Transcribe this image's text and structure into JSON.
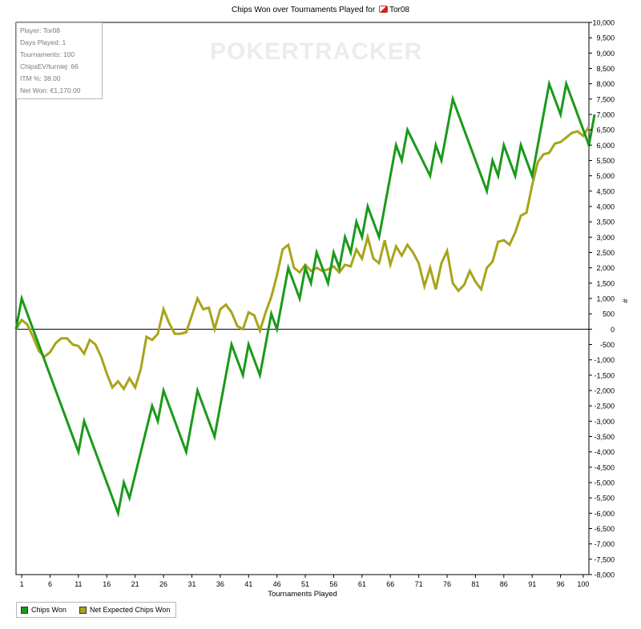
{
  "title": {
    "prefix": "Chips Won over Tournaments Played for",
    "player": "Tor08"
  },
  "logo": {
    "text": "POKERTRACKER"
  },
  "stats": [
    "Player: Tor08",
    "Days Played: 1",
    "Tournaments: 100",
    "ChipsEV/turniej: 66",
    "ITM %: 38.00",
    "Net Won: €1,170.00"
  ],
  "legend": {
    "chips_won": "Chips Won",
    "net_expected": "Net Expected Chips Won"
  },
  "colors": {
    "chips_won": "#1a9a1a",
    "net_expected": "#a8a41a"
  },
  "chart_data": {
    "type": "line",
    "title": "Chips Won over Tournaments Played for Tor08",
    "xlabel": "Tournaments Played",
    "ylabel": "#",
    "xlim": [
      0,
      101
    ],
    "ylim": [
      -8000,
      10000
    ],
    "x_ticks": [
      1,
      6,
      11,
      16,
      21,
      26,
      31,
      36,
      41,
      46,
      51,
      56,
      61,
      66,
      71,
      76,
      81,
      86,
      91,
      96,
      100
    ],
    "y_ticks": [
      -8000,
      -7500,
      -7000,
      -6500,
      -6000,
      -5500,
      -5000,
      -4500,
      -4000,
      -3500,
      -3000,
      -2500,
      -2000,
      -1500,
      -1000,
      -500,
      0,
      500,
      1000,
      1500,
      2000,
      2500,
      3000,
      3500,
      4000,
      4500,
      5000,
      5500,
      6000,
      6500,
      7000,
      7500,
      8000,
      8500,
      9000,
      9500,
      10000
    ],
    "y_tick_labels": [
      "-8,000",
      "-7,500",
      "-7,000",
      "-6,500",
      "-6,000",
      "-5,500",
      "-5,000",
      "-4,500",
      "-4,000",
      "-3,500",
      "-3,000",
      "-2,500",
      "-2,000",
      "-1,500",
      "-1,000",
      "-500",
      "0",
      "500",
      "1,000",
      "1,500",
      "2,000",
      "2,500",
      "3,000",
      "3,500",
      "4,000",
      "4,500",
      "5,000",
      "5,500",
      "6,000",
      "6,500",
      "7,000",
      "7,500",
      "8,000",
      "8,500",
      "9,000",
      "9,500",
      "10,000"
    ],
    "series": [
      {
        "name": "Chips Won",
        "points": [
          [
            0,
            0
          ],
          [
            1,
            1000
          ],
          [
            11,
            -4000
          ],
          [
            12,
            -3000
          ],
          [
            18,
            -6000
          ],
          [
            19,
            -5000
          ],
          [
            20,
            -5500
          ],
          [
            24,
            -2500
          ],
          [
            25,
            -3000
          ],
          [
            26,
            -2000
          ],
          [
            30,
            -4000
          ],
          [
            32,
            -2000
          ],
          [
            35,
            -3500
          ],
          [
            38,
            -500
          ],
          [
            40,
            -1500
          ],
          [
            41,
            -500
          ],
          [
            43,
            -1500
          ],
          [
            45,
            500
          ],
          [
            46,
            0
          ],
          [
            48,
            2000
          ],
          [
            50,
            1000
          ],
          [
            51,
            2000
          ],
          [
            52,
            1500
          ],
          [
            53,
            2500
          ],
          [
            55,
            1500
          ],
          [
            56,
            2500
          ],
          [
            57,
            2000
          ],
          [
            58,
            3000
          ],
          [
            59,
            2500
          ],
          [
            60,
            3500
          ],
          [
            61,
            3000
          ],
          [
            62,
            4000
          ],
          [
            64,
            3000
          ],
          [
            67,
            6000
          ],
          [
            68,
            5500
          ],
          [
            69,
            6500
          ],
          [
            73,
            5000
          ],
          [
            74,
            6000
          ],
          [
            75,
            5500
          ],
          [
            77,
            7500
          ],
          [
            83,
            4500
          ],
          [
            84,
            5500
          ],
          [
            85,
            5000
          ],
          [
            86,
            6000
          ],
          [
            88,
            5000
          ],
          [
            89,
            6000
          ],
          [
            91,
            5000
          ],
          [
            94,
            8000
          ],
          [
            96,
            7000
          ],
          [
            97,
            8000
          ],
          [
            101,
            6000
          ],
          [
            102,
            7000
          ]
        ]
      },
      {
        "name": "Net Expected Chips Won",
        "points": [
          [
            0,
            0
          ],
          [
            1,
            300
          ],
          [
            2,
            150
          ],
          [
            3,
            -250
          ],
          [
            4,
            -700
          ],
          [
            5,
            -900
          ],
          [
            6,
            -750
          ],
          [
            7,
            -450
          ],
          [
            8,
            -300
          ],
          [
            9,
            -300
          ],
          [
            10,
            -500
          ],
          [
            11,
            -550
          ],
          [
            12,
            -800
          ],
          [
            13,
            -350
          ],
          [
            14,
            -500
          ],
          [
            15,
            -900
          ],
          [
            16,
            -1450
          ],
          [
            17,
            -1900
          ],
          [
            18,
            -1700
          ],
          [
            19,
            -1950
          ],
          [
            20,
            -1600
          ],
          [
            21,
            -1900
          ],
          [
            22,
            -1300
          ],
          [
            23,
            -250
          ],
          [
            24,
            -350
          ],
          [
            25,
            -150
          ],
          [
            26,
            650
          ],
          [
            27,
            200
          ],
          [
            28,
            -150
          ],
          [
            29,
            -150
          ],
          [
            30,
            -100
          ],
          [
            31,
            450
          ],
          [
            32,
            1000
          ],
          [
            33,
            650
          ],
          [
            34,
            700
          ],
          [
            35,
            0
          ],
          [
            36,
            650
          ],
          [
            37,
            800
          ],
          [
            38,
            550
          ],
          [
            39,
            100
          ],
          [
            40,
            0
          ],
          [
            41,
            550
          ],
          [
            42,
            450
          ],
          [
            43,
            -50
          ],
          [
            44,
            550
          ],
          [
            45,
            1050
          ],
          [
            46,
            1750
          ],
          [
            47,
            2600
          ],
          [
            48,
            2750
          ],
          [
            49,
            2000
          ],
          [
            50,
            1850
          ],
          [
            51,
            2100
          ],
          [
            52,
            1900
          ],
          [
            53,
            2000
          ],
          [
            54,
            1900
          ],
          [
            55,
            1950
          ],
          [
            56,
            2050
          ],
          [
            57,
            1850
          ],
          [
            58,
            2100
          ],
          [
            59,
            2050
          ],
          [
            60,
            2600
          ],
          [
            61,
            2300
          ],
          [
            62,
            3000
          ],
          [
            63,
            2300
          ],
          [
            64,
            2150
          ],
          [
            65,
            2900
          ],
          [
            66,
            2100
          ],
          [
            67,
            2700
          ],
          [
            68,
            2400
          ],
          [
            69,
            2750
          ],
          [
            70,
            2500
          ],
          [
            71,
            2150
          ],
          [
            72,
            1400
          ],
          [
            73,
            2000
          ],
          [
            74,
            1300
          ],
          [
            75,
            2150
          ],
          [
            76,
            2550
          ],
          [
            77,
            1500
          ],
          [
            78,
            1250
          ],
          [
            79,
            1450
          ],
          [
            80,
            1900
          ],
          [
            81,
            1550
          ],
          [
            82,
            1300
          ],
          [
            83,
            2000
          ],
          [
            84,
            2200
          ],
          [
            85,
            2850
          ],
          [
            86,
            2900
          ],
          [
            87,
            2750
          ],
          [
            88,
            3150
          ],
          [
            89,
            3700
          ],
          [
            90,
            3800
          ],
          [
            91,
            4700
          ],
          [
            92,
            5450
          ],
          [
            93,
            5700
          ],
          [
            94,
            5750
          ],
          [
            95,
            6050
          ],
          [
            96,
            6100
          ],
          [
            97,
            6250
          ],
          [
            98,
            6400
          ],
          [
            99,
            6450
          ],
          [
            100,
            6300
          ],
          [
            101,
            6600
          ]
        ]
      }
    ]
  }
}
